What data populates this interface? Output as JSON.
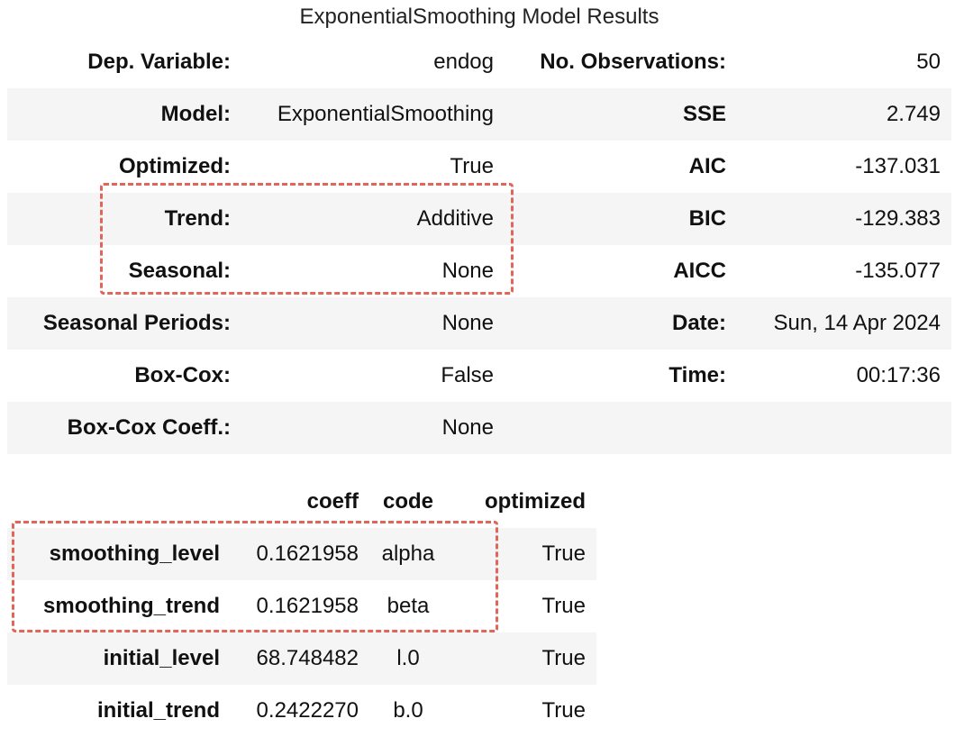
{
  "title": "ExponentialSmoothing Model Results",
  "summary": {
    "rows": [
      {
        "label1": "Dep. Variable:",
        "value1": "endog",
        "label2": "No. Observations:",
        "value2": "50"
      },
      {
        "label1": "Model:",
        "value1": "ExponentialSmoothing",
        "label2": "SSE",
        "value2": "2.749"
      },
      {
        "label1": "Optimized:",
        "value1": "True",
        "label2": "AIC",
        "value2": "-137.031"
      },
      {
        "label1": "Trend:",
        "value1": "Additive",
        "label2": "BIC",
        "value2": "-129.383"
      },
      {
        "label1": "Seasonal:",
        "value1": "None",
        "label2": "AICC",
        "value2": "-135.077"
      },
      {
        "label1": "Seasonal Periods:",
        "value1": "None",
        "label2": "Date:",
        "value2": "Sun, 14 Apr 2024"
      },
      {
        "label1": "Box-Cox:",
        "value1": "False",
        "label2": "Time:",
        "value2": "00:17:36"
      },
      {
        "label1": "Box-Cox Coeff.:",
        "value1": "None",
        "label2": "",
        "value2": ""
      }
    ]
  },
  "params": {
    "headers": [
      "",
      "coeff",
      "code",
      "optimized"
    ],
    "rows": [
      {
        "name": "smoothing_level",
        "coeff": "0.1621958",
        "code": "alpha",
        "optimized": "True"
      },
      {
        "name": "smoothing_trend",
        "coeff": "0.1621958",
        "code": "beta",
        "optimized": "True"
      },
      {
        "name": "initial_level",
        "coeff": "68.748482",
        "code": "l.0",
        "optimized": "True"
      },
      {
        "name": "initial_trend",
        "coeff": "0.2422270",
        "code": "b.0",
        "optimized": "True"
      }
    ]
  },
  "highlight_color": "#e0665a"
}
